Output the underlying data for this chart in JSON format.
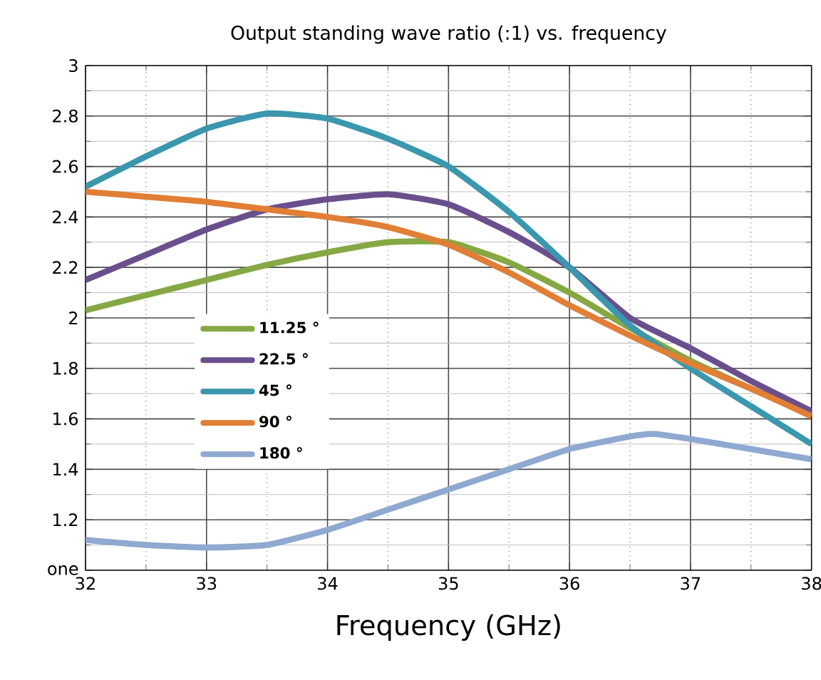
{
  "chart_data": {
    "type": "line",
    "title": "Output standing wave ratio (:1) vs. frequency",
    "xlabel": "Frequency (GHz)",
    "xlim": [
      32,
      38
    ],
    "xticks": [
      32,
      33,
      34,
      35,
      36,
      37,
      38
    ],
    "ylim": [
      1,
      3
    ],
    "yticks": [
      {
        "value": 1,
        "label": "one"
      },
      1.2,
      1.4,
      1.6,
      1.8,
      2,
      2.2,
      2.4,
      2.6,
      2.8,
      3
    ],
    "grid": true,
    "legend": "left",
    "marker": "none",
    "line_style": "solid",
    "series": [
      {
        "name": "11.25 °",
        "color": "#86a844",
        "x": [
          32,
          32.5,
          33,
          33.5,
          34,
          34.5,
          35,
          35.5,
          36,
          36.5,
          37,
          37.5,
          38
        ],
        "values": [
          2.03,
          2.09,
          2.15,
          2.21,
          2.26,
          2.3,
          2.3,
          2.22,
          2.1,
          1.96,
          1.83,
          1.72,
          1.62
        ]
      },
      {
        "name": "22.5 °",
        "color": "#6a4f8d",
        "x": [
          32,
          32.5,
          33,
          33.5,
          34,
          34.5,
          35,
          35.5,
          36,
          36.5,
          37,
          37.5,
          38
        ],
        "values": [
          2.15,
          2.25,
          2.35,
          2.43,
          2.47,
          2.49,
          2.45,
          2.34,
          2.2,
          2.0,
          1.88,
          1.75,
          1.63
        ]
      },
      {
        "name": "45 °",
        "color": "#3a97ae",
        "x": [
          32,
          32.5,
          33,
          33.5,
          34,
          34.5,
          35,
          35.5,
          36,
          36.5,
          37,
          37.5,
          38
        ],
        "values": [
          2.52,
          2.64,
          2.75,
          2.81,
          2.79,
          2.71,
          2.6,
          2.42,
          2.2,
          1.97,
          1.8,
          1.65,
          1.5
        ]
      },
      {
        "name": "90 °",
        "color": "#e07f35",
        "x": [
          32,
          32.5,
          33,
          33.5,
          34,
          34.5,
          35,
          35.5,
          36,
          36.5,
          37,
          37.5,
          38
        ],
        "values": [
          2.5,
          2.48,
          2.46,
          2.43,
          2.4,
          2.36,
          2.29,
          2.18,
          2.05,
          1.93,
          1.82,
          1.72,
          1.61
        ]
      },
      {
        "name": "180 °",
        "color": "#8fa9d0",
        "x": [
          32,
          32.5,
          33,
          33.5,
          34,
          34.5,
          35,
          35.5,
          36,
          36.5,
          36.7,
          37,
          37.5,
          38
        ],
        "values": [
          1.12,
          1.1,
          1.09,
          1.1,
          1.16,
          1.24,
          1.32,
          1.4,
          1.48,
          1.53,
          1.54,
          1.52,
          1.48,
          1.44
        ]
      }
    ]
  }
}
